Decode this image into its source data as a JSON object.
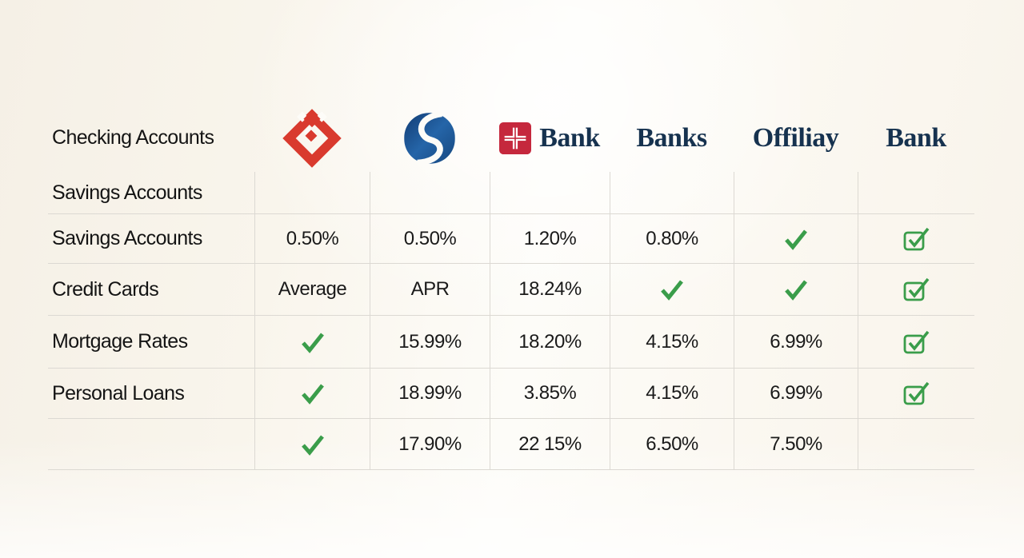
{
  "colors": {
    "check_green": "#3a9d4a",
    "logo_red": "#d93a2e",
    "cross_square_red": "#c5283d",
    "bank_navy": "#16324f",
    "grid_line": "#dcd9d3",
    "background_cream": "#f8f3ea"
  },
  "table": {
    "row_header": "Checking Accounts",
    "banks": [
      {
        "id": "red-diamond-logo",
        "text": ""
      },
      {
        "id": "blue-s-logo",
        "text": ""
      },
      {
        "id": "red-cross-logo",
        "text": "Bank"
      },
      {
        "text": "Banks"
      },
      {
        "text": "Offiliay"
      },
      {
        "text": "Bank"
      }
    ],
    "rows": [
      {
        "label": "Savings Accounts",
        "cells": [
          "",
          "",
          "",
          "",
          "",
          ""
        ]
      },
      {
        "label": "Savings Accounts",
        "cells": [
          "0.50%",
          "0.50%",
          "1.20%",
          "0.80%",
          "check",
          "checkbox"
        ]
      },
      {
        "label": "Credit Cards",
        "cells": [
          "Average",
          "APR",
          "18.24%",
          "check",
          "check",
          "checkbox"
        ]
      },
      {
        "label": "Mortgage Rates",
        "cells": [
          "check",
          "15.99%",
          "18.20%",
          "4.15%",
          "6.99%",
          "checkbox"
        ]
      },
      {
        "label": "Personal Loans",
        "cells": [
          "check",
          "18.99%",
          "3.85%",
          "4.15%",
          "6.99%",
          "checkbox"
        ]
      },
      {
        "label": "",
        "cells": [
          "check",
          "17.90%",
          "22 15%",
          "6.50%",
          "7.50%",
          ""
        ]
      }
    ]
  }
}
